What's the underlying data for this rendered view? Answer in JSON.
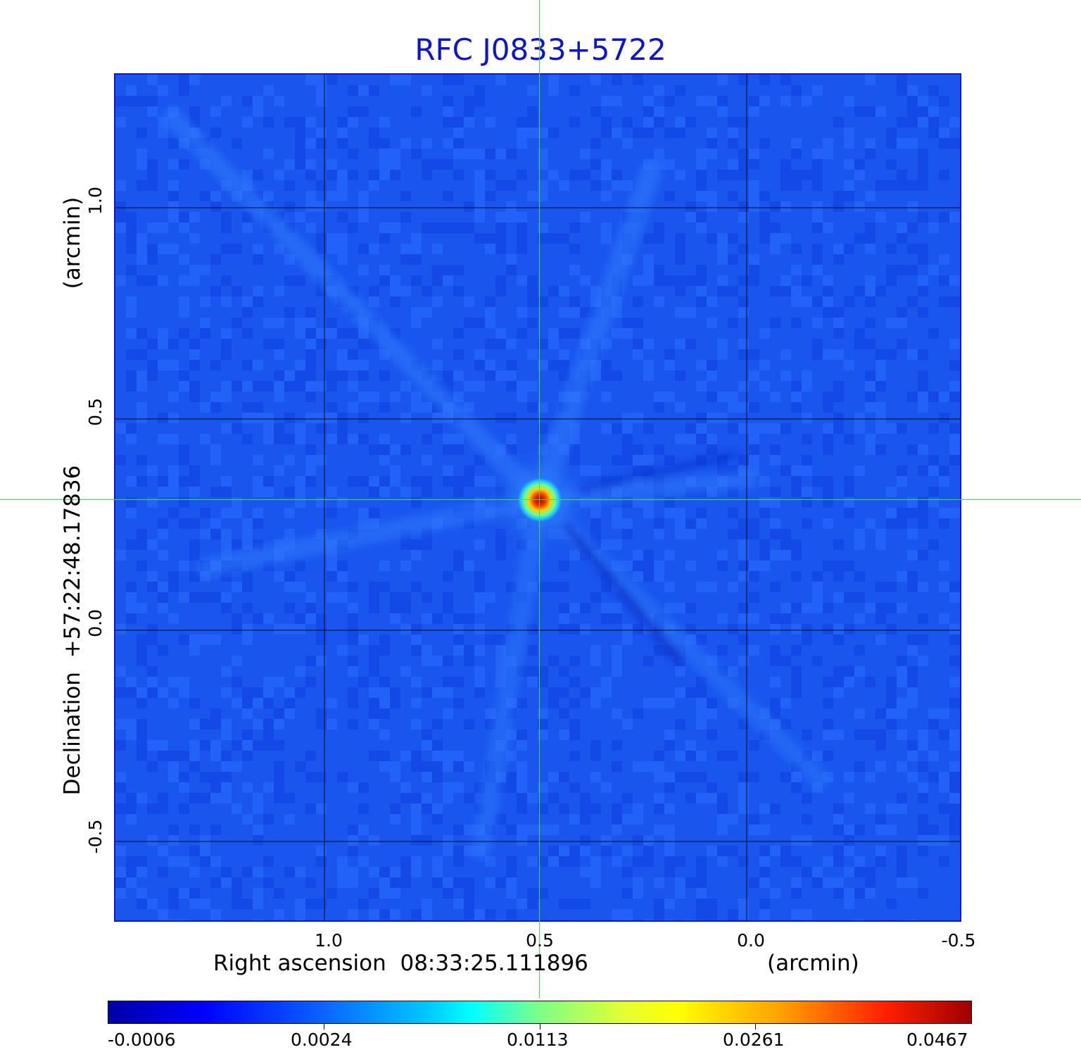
{
  "title": "RFC J0833+5722",
  "x_axis": {
    "label": "Right ascension  08:33:25.111896",
    "unit": "(arcmin)",
    "ticks": [
      "1.0",
      "0.5",
      "0.0",
      "-0.5"
    ]
  },
  "y_axis": {
    "label": "Declination  +57:22:48.17836",
    "unit": "(arcmin)",
    "ticks": [
      "1.0",
      "0.5",
      "0.0",
      "-0.5"
    ]
  },
  "colorbar": {
    "colormap": "jet",
    "ticks": [
      "-0.0006",
      "0.0024",
      "0.0113",
      "0.0261",
      "0.0467"
    ]
  },
  "colors": {
    "title": "#0a14d2",
    "crosshair": "#2ee83a",
    "background_field": "#1a55ee",
    "grid": "#000000"
  }
}
